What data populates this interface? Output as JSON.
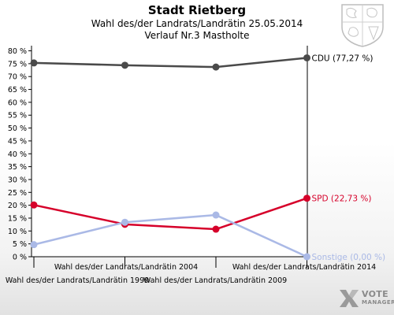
{
  "header": {
    "title": "Stadt Rietberg",
    "subtitle": "Wahl des/der Landrats/Landrätin 25.05.2014",
    "subtitle2": "Verlauf Nr.3 Mastholte"
  },
  "logo": {
    "line1": "VOTE",
    "line2": "MANAGER"
  },
  "chart_data": {
    "type": "line",
    "categories": [
      "Wahl des/der Landrats/Landrätin 1999",
      "Wahl des/der Landrats/Landrätin 2004",
      "Wahl des/der Landrats/Landrätin 2009",
      "Wahl des/der Landrats/Landrätin 2014"
    ],
    "yticks": [
      "0 %",
      "5 %",
      "10 %",
      "15 %",
      "20 %",
      "25 %",
      "30 %",
      "35 %",
      "40 %",
      "45 %",
      "50 %",
      "55 %",
      "60 %",
      "65 %",
      "70 %",
      "75 %",
      "80 %"
    ],
    "ylim": [
      0,
      82
    ],
    "grid": false,
    "series": [
      {
        "name": "CDU",
        "end_label": "CDU (77,27 %)",
        "color": "#4a4a4a",
        "values": [
          75.3,
          74.4,
          73.7,
          77.27
        ]
      },
      {
        "name": "SPD",
        "end_label": "SPD (22,73 %)",
        "color": "#d6002a",
        "values": [
          20.1,
          12.6,
          10.7,
          22.73
        ]
      },
      {
        "name": "Sonstige",
        "end_label": "Sonstige (0,00 %)",
        "color": "#aab9e6",
        "values": [
          4.7,
          13.4,
          16.2,
          0.0
        ]
      }
    ]
  }
}
